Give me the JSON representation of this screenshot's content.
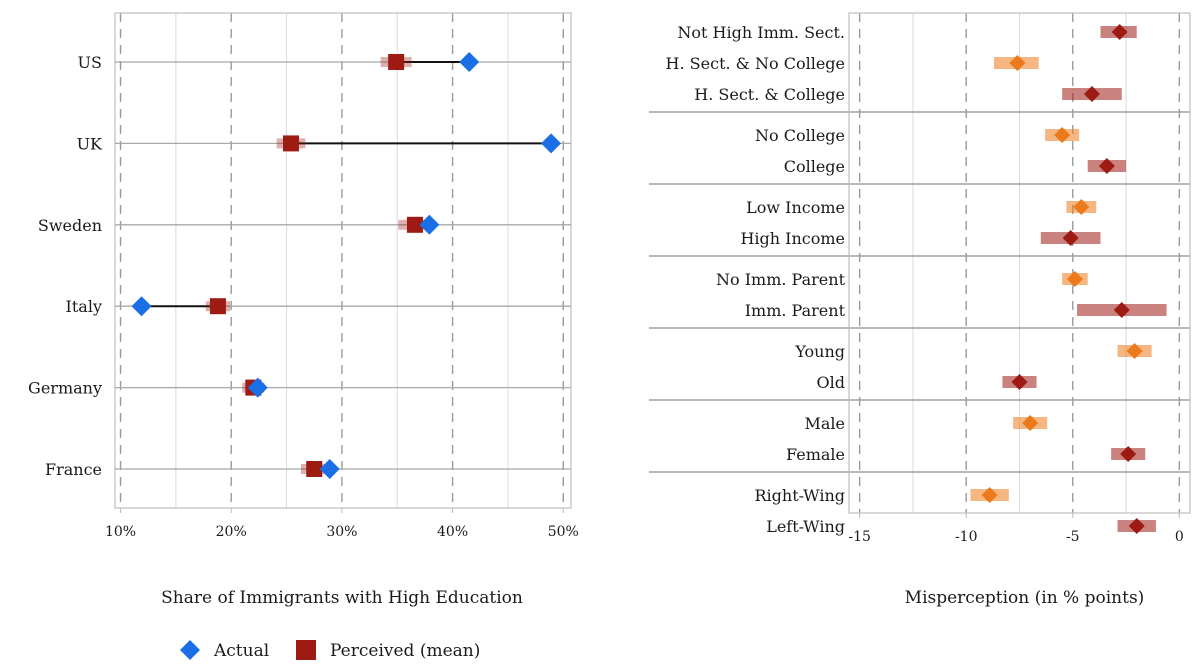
{
  "chart_data": [
    {
      "type": "dumbbell",
      "xlabel": "Share of Immigrants with High Education",
      "xlim": [
        9.5,
        50.7
      ],
      "xticks": [
        10,
        20,
        30,
        40,
        50
      ],
      "xtick_labels": [
        "10%",
        "20%",
        "30%",
        "40%",
        "50%"
      ],
      "grid": "vertical dashed at major ticks, light solid at minor ticks",
      "categories": [
        "US",
        "UK",
        "Sweden",
        "Italy",
        "Germany",
        "France"
      ],
      "series": [
        {
          "name": "Actual",
          "marker": "diamond",
          "color": "#1a6fe6",
          "values": [
            41.5,
            48.9,
            37.9,
            11.9,
            22.4,
            28.9
          ]
        },
        {
          "name": "Perceived (mean)",
          "marker": "square",
          "color": "#9e1b14",
          "values": [
            34.9,
            25.4,
            36.6,
            18.8,
            22.0,
            27.5
          ],
          "ci_halfwidth": [
            1.4,
            1.3,
            1.5,
            1.1,
            1.0,
            1.2
          ]
        }
      ],
      "legend": {
        "placement": "bottom-center",
        "items": [
          "Actual",
          "Perceived (mean)"
        ]
      }
    },
    {
      "type": "coefficient",
      "xlabel": "Misperception (in % points)",
      "xlim": [
        -15.5,
        0.5
      ],
      "xticks": [
        -15,
        -10,
        -5,
        0
      ],
      "xtick_labels": [
        "-15",
        "-10",
        "-5",
        "0"
      ],
      "grid": "vertical dashed at major ticks, light solid at minor ticks",
      "groups": [
        {
          "rows": [
            {
              "label": "Not High Imm. Sect.",
              "value": -2.8,
              "ci": [
                -3.7,
                -2.0
              ],
              "color": "#9e1b14"
            },
            {
              "label": "H. Sect. & No College",
              "value": -7.6,
              "ci": [
                -8.7,
                -6.6
              ],
              "color": "#ec7a1c"
            },
            {
              "label": "H. Sect. & College",
              "value": -4.1,
              "ci": [
                -5.5,
                -2.7
              ],
              "color": "#9e1b14"
            }
          ]
        },
        {
          "rows": [
            {
              "label": "No College",
              "value": -5.5,
              "ci": [
                -6.3,
                -4.7
              ],
              "color": "#ec7a1c"
            },
            {
              "label": "College",
              "value": -3.4,
              "ci": [
                -4.3,
                -2.5
              ],
              "color": "#9e1b14"
            }
          ]
        },
        {
          "rows": [
            {
              "label": "Low Income",
              "value": -4.6,
              "ci": [
                -5.3,
                -3.9
              ],
              "color": "#ec7a1c"
            },
            {
              "label": "High Income",
              "value": -5.1,
              "ci": [
                -6.5,
                -3.7
              ],
              "color": "#9e1b14"
            }
          ]
        },
        {
          "rows": [
            {
              "label": "No Imm. Parent",
              "value": -4.9,
              "ci": [
                -5.5,
                -4.3
              ],
              "color": "#ec7a1c"
            },
            {
              "label": "Imm. Parent",
              "value": -2.7,
              "ci": [
                -4.8,
                -0.6
              ],
              "color": "#9e1b14"
            }
          ]
        },
        {
          "rows": [
            {
              "label": "Young",
              "value": -2.1,
              "ci": [
                -2.9,
                -1.3
              ],
              "color": "#ec7a1c"
            },
            {
              "label": "Old",
              "value": -7.5,
              "ci": [
                -8.3,
                -6.7
              ],
              "color": "#9e1b14"
            }
          ]
        },
        {
          "rows": [
            {
              "label": "Male",
              "value": -7.0,
              "ci": [
                -7.8,
                -6.2
              ],
              "color": "#ec7a1c"
            },
            {
              "label": "Female",
              "value": -2.4,
              "ci": [
                -3.2,
                -1.6
              ],
              "color": "#9e1b14"
            }
          ]
        },
        {
          "rows": [
            {
              "label": "Right-Wing",
              "value": -8.9,
              "ci": [
                -9.8,
                -8.0
              ],
              "color": "#ec7a1c"
            },
            {
              "label": "Left-Wing",
              "value": -2.0,
              "ci": [
                -2.9,
                -1.1
              ],
              "color": "#9e1b14"
            }
          ]
        }
      ]
    }
  ]
}
